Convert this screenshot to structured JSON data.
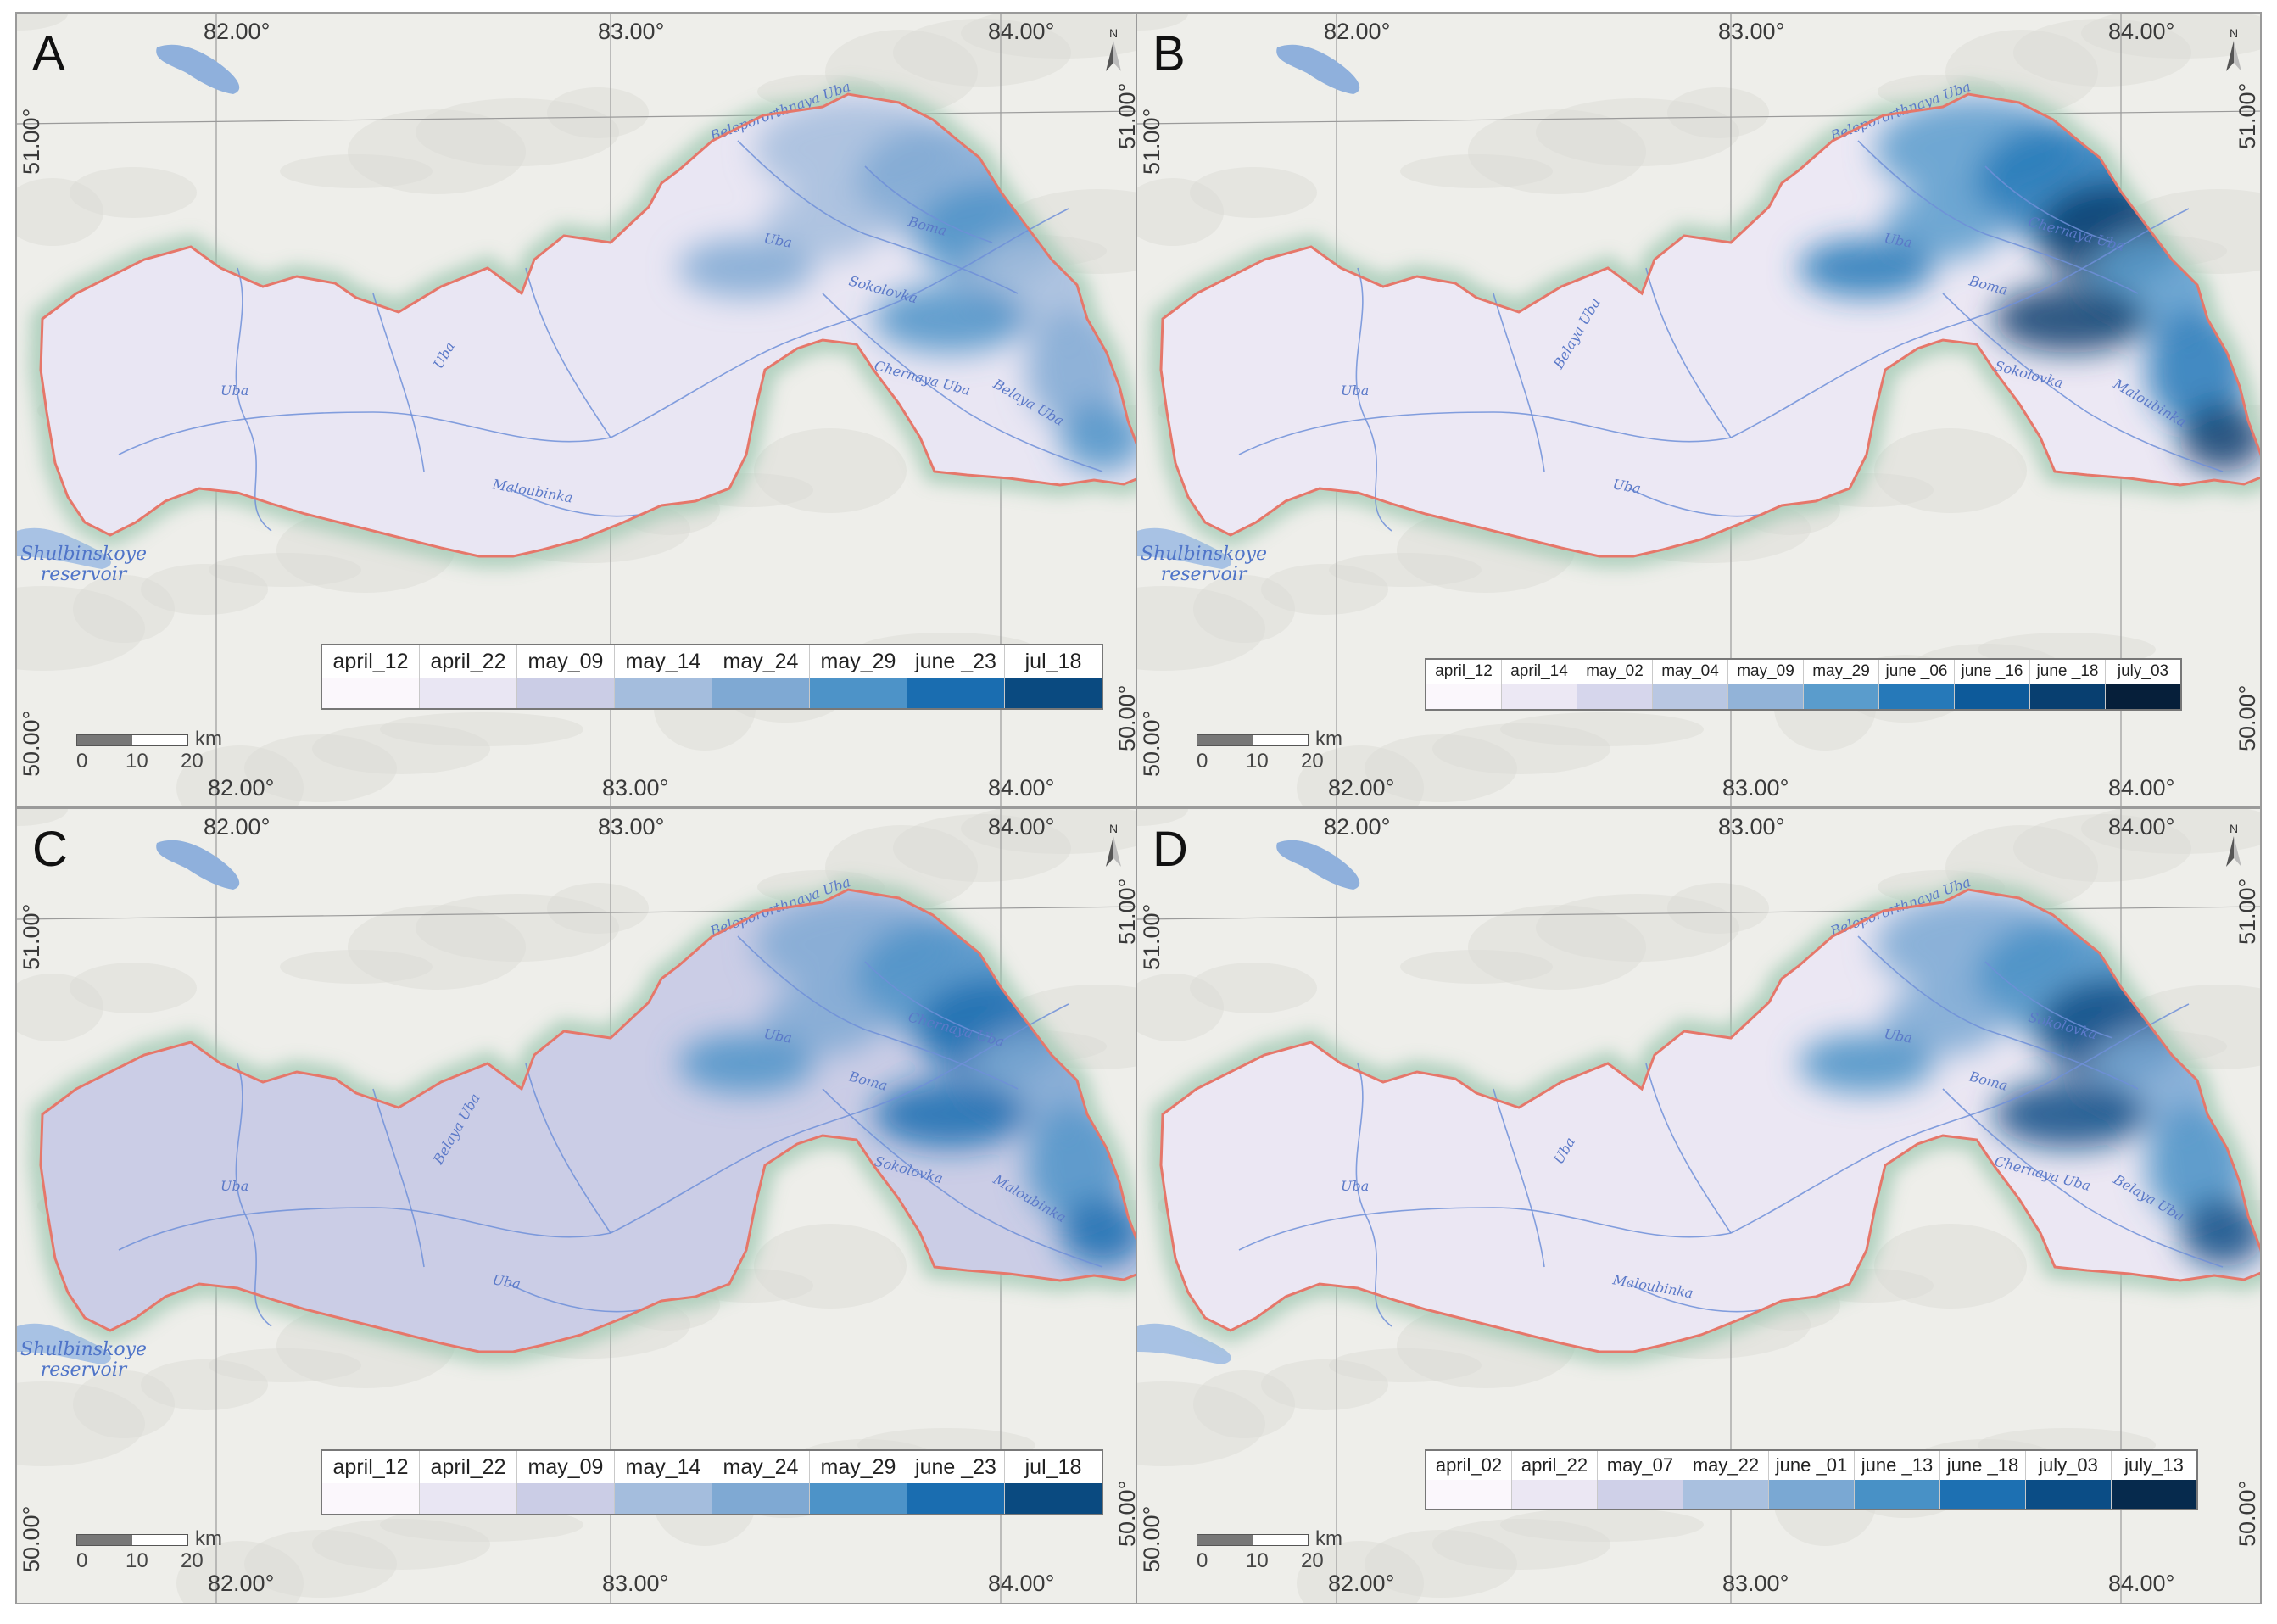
{
  "panels": [
    {
      "letter": "A",
      "top_coords": [
        "82.00°",
        "83.00°",
        "84.00°"
      ],
      "bottom_coords": [
        "82.00°",
        "83.00°",
        "84.00°"
      ],
      "left_coords": [
        "51.00°",
        "50.00°"
      ],
      "right_coords": [
        "51.00°",
        "50.00°"
      ],
      "rivers": [
        "Belopororthnaya Uba",
        "Uba",
        "Sokolovka",
        "Boma",
        "Chernaya Uba",
        "Uba",
        "Uba",
        "Maloubinka",
        "Belaya Uba"
      ],
      "reservoir": [
        "Shulbinskoye",
        "reservoir"
      ],
      "scale": {
        "unit": "km",
        "ticks": [
          "0",
          "10",
          "20"
        ]
      },
      "legend": {
        "labels": [
          "april_12",
          "april_22",
          "may_09",
          "may_14",
          "may_24",
          "may_29",
          "june _23",
          "jul_18"
        ],
        "colors": [
          "#fbf7fc",
          "#e9e6f3",
          "#cbcde6",
          "#a4bddd",
          "#7fa9d3",
          "#4d93c8",
          "#1a6db0",
          "#0a4a80"
        ]
      }
    },
    {
      "letter": "B",
      "top_coords": [
        "82.00°",
        "83.00°",
        "84.00°"
      ],
      "bottom_coords": [
        "82.00°",
        "83.00°",
        "84.00°"
      ],
      "left_coords": [
        "51.00°",
        "50.00°"
      ],
      "right_coords": [
        "51.00°",
        "50.00°"
      ],
      "rivers": [
        "Belopororthnaya Uba",
        "Uba",
        "Boma",
        "Chernaya Uba",
        "Sokolovka",
        "Belaya Uba",
        "Uba",
        "Uba",
        "Maloubinka"
      ],
      "reservoir": [
        "Shulbinskoye",
        "reservoir"
      ],
      "scale": {
        "unit": "km",
        "ticks": [
          "0",
          "10",
          "20"
        ]
      },
      "legend": {
        "labels": [
          "april_12",
          "april_14",
          "may_02",
          "may_04",
          "may_09",
          "may_29",
          "june _06",
          "june _16",
          "june _18",
          "july_03"
        ],
        "colors": [
          "#fbf7fc",
          "#ece8f4",
          "#d6d6ec",
          "#b9c7e2",
          "#92b3d8",
          "#5a9ccc",
          "#2679b9",
          "#0d5a9a",
          "#083f70",
          "#061f3a"
        ]
      }
    },
    {
      "letter": "C",
      "top_coords": [
        "82.00°",
        "83.00°",
        "84.00°"
      ],
      "bottom_coords": [
        "82.00°",
        "83.00°",
        "84.00°"
      ],
      "left_coords": [
        "51.00°",
        "50.00°"
      ],
      "right_coords": [
        "51.00°",
        "50.00°"
      ],
      "rivers": [
        "Belopororthnaya Uba",
        "Uba",
        "Boma",
        "Chernaya Uba",
        "Sokolovka",
        "Belaya Uba",
        "Uba",
        "Uba",
        "Maloubinka"
      ],
      "reservoir": [
        "Shulbinskoye",
        "reservoir"
      ],
      "scale": {
        "unit": "km",
        "ticks": [
          "0",
          "10",
          "20"
        ]
      },
      "legend": {
        "labels": [
          "april_12",
          "april_22",
          "may_09",
          "may_14",
          "may_24",
          "may_29",
          "june _23",
          "jul_18"
        ],
        "colors": [
          "#fbf7fc",
          "#e9e6f3",
          "#cbcde6",
          "#a4bddd",
          "#7fa9d3",
          "#4d93c8",
          "#1a6db0",
          "#0a4a80"
        ]
      }
    },
    {
      "letter": "D",
      "top_coords": [
        "82.00°",
        "83.00°",
        "84.00°"
      ],
      "bottom_coords": [
        "82.00°",
        "83.00°",
        "84.00°"
      ],
      "left_coords": [
        "51.00°",
        "50.00°"
      ],
      "right_coords": [
        "51.00°",
        "50.00°"
      ],
      "rivers": [
        "Belopororthnaya Uba",
        "Uba",
        "Boma",
        "Sokolovka",
        "Chernaya Uba",
        "Uba",
        "Uba",
        "Maloubinka",
        "Belaya Uba"
      ],
      "reservoir": [
        "",
        ""
      ],
      "scale": {
        "unit": "km",
        "ticks": [
          "0",
          "10",
          "20"
        ]
      },
      "legend": {
        "labels": [
          "april_02",
          "april_22",
          "may_07",
          "may_22",
          "june _01",
          "june _13",
          "june _18",
          "july_03",
          "july_13"
        ],
        "colors": [
          "#fbf7fc",
          "#ebe7f3",
          "#cfd0e8",
          "#a9c0df",
          "#7aa8d3",
          "#4891c6",
          "#1d70b2",
          "#0b4d86",
          "#062a4d"
        ]
      }
    }
  ]
}
